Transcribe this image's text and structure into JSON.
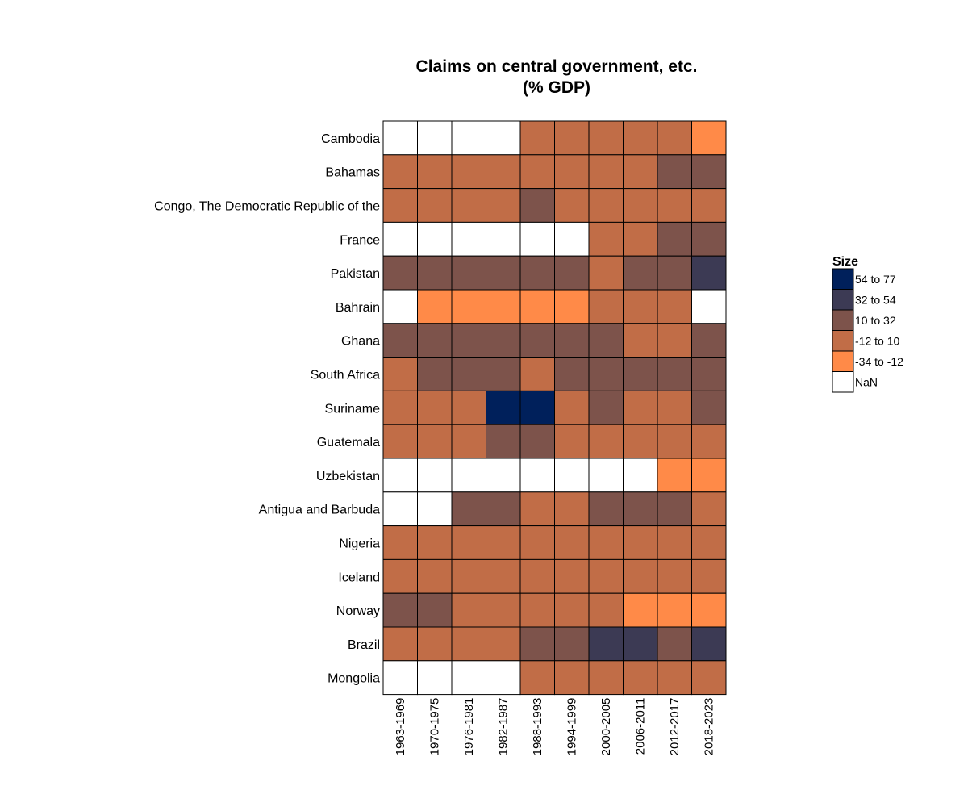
{
  "chart_data": {
    "type": "heatmap",
    "title": [
      "Claims on central government, etc.",
      "(% GDP)"
    ],
    "columns": [
      "1963-1969",
      "1970-1975",
      "1976-1981",
      "1982-1987",
      "1988-1993",
      "1994-1999",
      "2000-2005",
      "2006-2011",
      "2012-2017",
      "2018-2023"
    ],
    "rows": [
      "Cambodia",
      "Bahamas",
      "Congo, The Democratic Republic of the",
      "France",
      "Pakistan",
      "Bahrain",
      "Ghana",
      "South Africa",
      "Suriname",
      "Guatemala",
      "Uzbekistan",
      "Antigua and Barbuda",
      "Nigeria",
      "Iceland",
      "Norway",
      "Brazil",
      "Mongolia"
    ],
    "legend": {
      "title": "Size",
      "placement": "right",
      "bins": [
        {
          "label": "54 to 77",
          "color": "#00205b"
        },
        {
          "label": "32 to 54",
          "color": "#3c3a54"
        },
        {
          "label": "10 to 32",
          "color": "#7d534b"
        },
        {
          "label": "-12 to 10",
          "color": "#c16d47"
        },
        {
          "label": "-34 to -12",
          "color": "#ff8a48"
        },
        {
          "label": "NaN",
          "color": "#ffffff"
        }
      ]
    },
    "cells": [
      [
        "NaN",
        "NaN",
        "NaN",
        "NaN",
        "-12 to 10",
        "-12 to 10",
        "-12 to 10",
        "-12 to 10",
        "-12 to 10",
        "-34 to -12"
      ],
      [
        "-12 to 10",
        "-12 to 10",
        "-12 to 10",
        "-12 to 10",
        "-12 to 10",
        "-12 to 10",
        "-12 to 10",
        "-12 to 10",
        "10 to 32",
        "10 to 32"
      ],
      [
        "-12 to 10",
        "-12 to 10",
        "-12 to 10",
        "-12 to 10",
        "10 to 32",
        "-12 to 10",
        "-12 to 10",
        "-12 to 10",
        "-12 to 10",
        "-12 to 10"
      ],
      [
        "NaN",
        "NaN",
        "NaN",
        "NaN",
        "NaN",
        "NaN",
        "-12 to 10",
        "-12 to 10",
        "10 to 32",
        "10 to 32"
      ],
      [
        "10 to 32",
        "10 to 32",
        "10 to 32",
        "10 to 32",
        "10 to 32",
        "10 to 32",
        "-12 to 10",
        "10 to 32",
        "10 to 32",
        "32 to 54"
      ],
      [
        "NaN",
        "-34 to -12",
        "-34 to -12",
        "-34 to -12",
        "-34 to -12",
        "-34 to -12",
        "-12 to 10",
        "-12 to 10",
        "-12 to 10",
        "NaN"
      ],
      [
        "10 to 32",
        "10 to 32",
        "10 to 32",
        "10 to 32",
        "10 to 32",
        "10 to 32",
        "10 to 32",
        "-12 to 10",
        "-12 to 10",
        "10 to 32"
      ],
      [
        "-12 to 10",
        "10 to 32",
        "10 to 32",
        "10 to 32",
        "-12 to 10",
        "10 to 32",
        "10 to 32",
        "10 to 32",
        "10 to 32",
        "10 to 32"
      ],
      [
        "-12 to 10",
        "-12 to 10",
        "-12 to 10",
        "54 to 77",
        "54 to 77",
        "-12 to 10",
        "10 to 32",
        "-12 to 10",
        "-12 to 10",
        "10 to 32"
      ],
      [
        "-12 to 10",
        "-12 to 10",
        "-12 to 10",
        "10 to 32",
        "10 to 32",
        "-12 to 10",
        "-12 to 10",
        "-12 to 10",
        "-12 to 10",
        "-12 to 10"
      ],
      [
        "NaN",
        "NaN",
        "NaN",
        "NaN",
        "NaN",
        "NaN",
        "NaN",
        "NaN",
        "-34 to -12",
        "-34 to -12"
      ],
      [
        "NaN",
        "NaN",
        "10 to 32",
        "10 to 32",
        "-12 to 10",
        "-12 to 10",
        "10 to 32",
        "10 to 32",
        "10 to 32",
        "-12 to 10"
      ],
      [
        "-12 to 10",
        "-12 to 10",
        "-12 to 10",
        "-12 to 10",
        "-12 to 10",
        "-12 to 10",
        "-12 to 10",
        "-12 to 10",
        "-12 to 10",
        "-12 to 10"
      ],
      [
        "-12 to 10",
        "-12 to 10",
        "-12 to 10",
        "-12 to 10",
        "-12 to 10",
        "-12 to 10",
        "-12 to 10",
        "-12 to 10",
        "-12 to 10",
        "-12 to 10"
      ],
      [
        "10 to 32",
        "10 to 32",
        "-12 to 10",
        "-12 to 10",
        "-12 to 10",
        "-12 to 10",
        "-12 to 10",
        "-34 to -12",
        "-34 to -12",
        "-34 to -12"
      ],
      [
        "-12 to 10",
        "-12 to 10",
        "-12 to 10",
        "-12 to 10",
        "10 to 32",
        "10 to 32",
        "32 to 54",
        "32 to 54",
        "10 to 32",
        "32 to 54"
      ],
      [
        "NaN",
        "NaN",
        "NaN",
        "NaN",
        "-12 to 10",
        "-12 to 10",
        "-12 to 10",
        "-12 to 10",
        "-12 to 10",
        "-12 to 10"
      ]
    ]
  }
}
